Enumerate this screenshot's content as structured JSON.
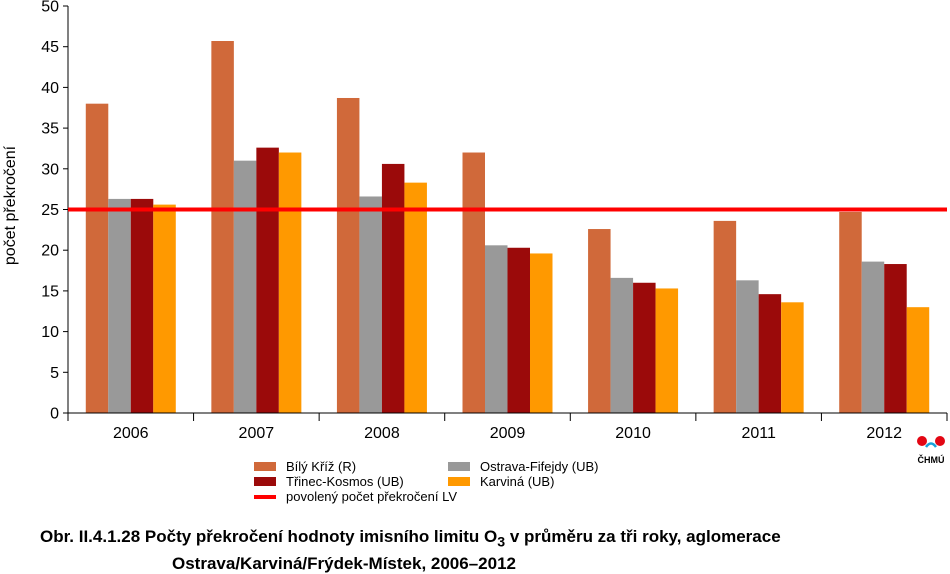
{
  "chart_data": {
    "type": "bar",
    "categories": [
      "2006",
      "2007",
      "2008",
      "2009",
      "2010",
      "2011",
      "2012"
    ],
    "series": [
      {
        "name": "Bílý Kříž (R)",
        "color": "#d0693a",
        "values": [
          38.0,
          45.7,
          38.7,
          32.0,
          22.6,
          23.6,
          24.7
        ]
      },
      {
        "name": "Ostrava-Fifejdy (UB)",
        "color": "#999999",
        "values": [
          26.3,
          31.0,
          26.6,
          20.6,
          16.6,
          16.3,
          18.6
        ]
      },
      {
        "name": "Třinec-Kosmos (UB)",
        "color": "#9b0a0a",
        "values": [
          26.3,
          32.6,
          30.6,
          20.3,
          16.0,
          14.6,
          18.3
        ]
      },
      {
        "name": "Karviná (UB)",
        "color": "#ff9900",
        "values": [
          25.6,
          32.0,
          28.3,
          19.6,
          15.3,
          13.6,
          13.0
        ]
      }
    ],
    "reference_line": {
      "name": "povolený počet překročení LV",
      "value": 25,
      "color": "#ff0000"
    },
    "ylabel": "počet překročení",
    "xlabel": "",
    "ylim": [
      0,
      50
    ],
    "yticks": [
      0,
      5,
      10,
      15,
      20,
      25,
      30,
      35,
      40,
      45,
      50
    ],
    "grid": false,
    "legend_position": "bottom"
  },
  "legend": {
    "bily_kriz": "Bílý Kříž (R)",
    "ostrava_fifejdy": "Ostrava-Fifejdy (UB)",
    "trinec_kosmos": "Třinec-Kosmos (UB)",
    "karvina": "Karviná (UB)",
    "limit_line": "povolený počet překročení LV"
  },
  "caption": {
    "prefix": "Obr. II.4.1.28  Počty překročení hodnoty imisního limitu O",
    "subscript": "3",
    "suffix": " v průměru za tři roky, aglomerace",
    "line2": "Ostrava/Karviná/Frýdek-Místek, 2006–2012"
  },
  "logo": {
    "text": "ČHMÚ",
    "icon": "chmu-logo-icon"
  }
}
